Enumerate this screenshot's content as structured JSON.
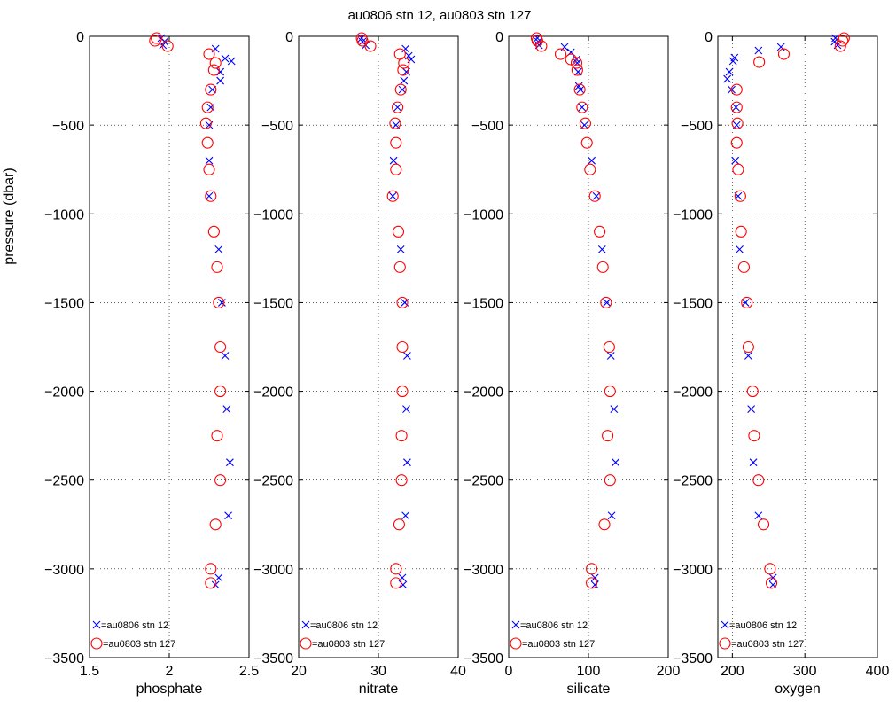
{
  "title": "au0806 stn 12, au0803 stn 127",
  "ylabel": "pressure (dbar)",
  "legend": {
    "series_a": "=au0806 stn 12",
    "series_b": "=au0803 stn 127"
  },
  "colors": {
    "au0806_stn_12": "#0000ff",
    "au0803_stn_127": "#ff0000"
  },
  "chart_data": [
    {
      "type": "scatter",
      "xlabel": "phosphate",
      "ylabel": "pressure (dbar)",
      "xlim": [
        1.5,
        2.5
      ],
      "ylim": [
        -3500,
        0
      ],
      "xticks": [
        1.5,
        2,
        2.5
      ],
      "yticks": [
        0,
        -500,
        -1000,
        -1500,
        -2000,
        -2500,
        -3000,
        -3500
      ],
      "grid": true,
      "legend_position": "bottom-left",
      "series": [
        {
          "name": "au0806 stn 12",
          "marker": "x",
          "color": "#0000ff",
          "points": [
            [
              1.95,
              -10
            ],
            [
              1.97,
              -30
            ],
            [
              1.96,
              -50
            ],
            [
              2.29,
              -70
            ],
            [
              2.35,
              -125
            ],
            [
              2.39,
              -140
            ],
            [
              2.32,
              -200
            ],
            [
              2.32,
              -250
            ],
            [
              2.27,
              -300
            ],
            [
              2.26,
              -400
            ],
            [
              2.25,
              -500
            ],
            [
              2.25,
              -700
            ],
            [
              2.25,
              -900
            ],
            [
              2.31,
              -1200
            ],
            [
              2.33,
              -1500
            ],
            [
              2.35,
              -1800
            ],
            [
              2.36,
              -2100
            ],
            [
              2.38,
              -2400
            ],
            [
              2.37,
              -2700
            ],
            [
              2.31,
              -3050
            ],
            [
              2.29,
              -3090
            ]
          ]
        },
        {
          "name": "au0803 stn 127",
          "marker": "o",
          "color": "#ff0000",
          "points": [
            [
              1.92,
              -10
            ],
            [
              1.91,
              -25
            ],
            [
              1.99,
              -55
            ],
            [
              2.25,
              -100
            ],
            [
              2.29,
              -150
            ],
            [
              2.28,
              -190
            ],
            [
              2.26,
              -300
            ],
            [
              2.24,
              -400
            ],
            [
              2.23,
              -490
            ],
            [
              2.24,
              -600
            ],
            [
              2.25,
              -750
            ],
            [
              2.26,
              -900
            ],
            [
              2.28,
              -1100
            ],
            [
              2.3,
              -1300
            ],
            [
              2.31,
              -1500
            ],
            [
              2.32,
              -1750
            ],
            [
              2.32,
              -2000
            ],
            [
              2.3,
              -2250
            ],
            [
              2.32,
              -2500
            ],
            [
              2.29,
              -2750
            ],
            [
              2.26,
              -3000
            ],
            [
              2.26,
              -3080
            ]
          ]
        }
      ]
    },
    {
      "type": "scatter",
      "xlabel": "nitrate",
      "xlim": [
        20,
        40
      ],
      "ylim": [
        -3500,
        0
      ],
      "xticks": [
        20,
        30,
        40
      ],
      "yticks": [
        0,
        -500,
        -1000,
        -1500,
        -2000,
        -2500,
        -3000,
        -3500
      ],
      "grid": true,
      "legend_position": "bottom-left",
      "series": [
        {
          "name": "au0806 stn 12",
          "marker": "x",
          "color": "#0000ff",
          "points": [
            [
              27.9,
              -10
            ],
            [
              28.0,
              -30
            ],
            [
              28.4,
              -50
            ],
            [
              33.4,
              -70
            ],
            [
              33.8,
              -110
            ],
            [
              34.1,
              -130
            ],
            [
              33.5,
              -200
            ],
            [
              33.2,
              -250
            ],
            [
              33.0,
              -300
            ],
            [
              32.4,
              -400
            ],
            [
              32.2,
              -500
            ],
            [
              31.9,
              -700
            ],
            [
              31.8,
              -900
            ],
            [
              32.8,
              -1200
            ],
            [
              33.3,
              -1500
            ],
            [
              33.6,
              -1800
            ],
            [
              33.5,
              -2100
            ],
            [
              33.6,
              -2400
            ],
            [
              33.4,
              -2700
            ],
            [
              33.0,
              -3050
            ],
            [
              33.1,
              -3090
            ]
          ]
        },
        {
          "name": "au0803 stn 127",
          "marker": "o",
          "color": "#ff0000",
          "points": [
            [
              27.9,
              -10
            ],
            [
              28.0,
              -25
            ],
            [
              29.0,
              -55
            ],
            [
              32.7,
              -100
            ],
            [
              33.2,
              -150
            ],
            [
              33.1,
              -190
            ],
            [
              32.8,
              -300
            ],
            [
              32.4,
              -400
            ],
            [
              32.1,
              -490
            ],
            [
              32.2,
              -600
            ],
            [
              32.2,
              -750
            ],
            [
              31.8,
              -900
            ],
            [
              32.5,
              -1100
            ],
            [
              32.7,
              -1300
            ],
            [
              33.0,
              -1500
            ],
            [
              33.0,
              -1750
            ],
            [
              33.0,
              -2000
            ],
            [
              32.9,
              -2250
            ],
            [
              32.9,
              -2500
            ],
            [
              32.6,
              -2750
            ],
            [
              32.2,
              -3000
            ],
            [
              32.2,
              -3080
            ]
          ]
        }
      ]
    },
    {
      "type": "scatter",
      "xlabel": "silicate",
      "xlim": [
        0,
        200
      ],
      "ylim": [
        -3500,
        0
      ],
      "xticks": [
        0,
        100,
        200
      ],
      "yticks": [
        0,
        -500,
        -1000,
        -1500,
        -2000,
        -2500,
        -3000,
        -3500
      ],
      "grid": true,
      "legend_position": "bottom-left",
      "series": [
        {
          "name": "au0806 stn 12",
          "marker": "x",
          "color": "#0000ff",
          "points": [
            [
              36,
              -10
            ],
            [
              37,
              -30
            ],
            [
              38,
              -50
            ],
            [
              70,
              -60
            ],
            [
              78,
              -90
            ],
            [
              85,
              -130
            ],
            [
              86,
              -150
            ],
            [
              87,
              -200
            ],
            [
              88,
              -280
            ],
            [
              90,
              -300
            ],
            [
              92,
              -400
            ],
            [
              95,
              -500
            ],
            [
              104,
              -700
            ],
            [
              110,
              -900
            ],
            [
              117,
              -1200
            ],
            [
              123,
              -1500
            ],
            [
              128,
              -1800
            ],
            [
              132,
              -2100
            ],
            [
              134,
              -2400
            ],
            [
              129,
              -2700
            ],
            [
              108,
              -3050
            ],
            [
              108,
              -3090
            ]
          ]
        },
        {
          "name": "au0803 stn 127",
          "marker": "o",
          "color": "#ff0000",
          "points": [
            [
              35,
              -10
            ],
            [
              36,
              -25
            ],
            [
              41,
              -55
            ],
            [
              65,
              -100
            ],
            [
              78,
              -130
            ],
            [
              85,
              -150
            ],
            [
              86,
              -190
            ],
            [
              89,
              -300
            ],
            [
              92,
              -400
            ],
            [
              96,
              -490
            ],
            [
              98,
              -600
            ],
            [
              102,
              -750
            ],
            [
              108,
              -900
            ],
            [
              114,
              -1100
            ],
            [
              118,
              -1300
            ],
            [
              122,
              -1500
            ],
            [
              126,
              -1750
            ],
            [
              127,
              -2000
            ],
            [
              124,
              -2250
            ],
            [
              127,
              -2500
            ],
            [
              120,
              -2750
            ],
            [
              104,
              -3000
            ],
            [
              104,
              -3080
            ]
          ]
        }
      ]
    },
    {
      "type": "scatter",
      "xlabel": "oxygen",
      "xlim": [
        180,
        400
      ],
      "ylim": [
        -3500,
        0
      ],
      "xticks": [
        200,
        300,
        400
      ],
      "yticks": [
        0,
        -500,
        -1000,
        -1500,
        -2000,
        -2500,
        -3000,
        -3500
      ],
      "grid": true,
      "legend_position": "bottom-left",
      "series": [
        {
          "name": "au0806 stn 12",
          "marker": "x",
          "color": "#0000ff",
          "points": [
            [
              342,
              -10
            ],
            [
              341,
              -30
            ],
            [
              345,
              -50
            ],
            [
              267,
              -60
            ],
            [
              236,
              -80
            ],
            [
              203,
              -120
            ],
            [
              201,
              -140
            ],
            [
              196,
              -200
            ],
            [
              193,
              -240
            ],
            [
              199,
              -300
            ],
            [
              205,
              -400
            ],
            [
              206,
              -500
            ],
            [
              204,
              -700
            ],
            [
              208,
              -900
            ],
            [
              210,
              -1200
            ],
            [
              218,
              -1500
            ],
            [
              222,
              -1800
            ],
            [
              226,
              -2100
            ],
            [
              229,
              -2400
            ],
            [
              236,
              -2700
            ],
            [
              256,
              -3050
            ],
            [
              256,
              -3090
            ]
          ]
        },
        {
          "name": "au0803 stn 127",
          "marker": "o",
          "color": "#ff0000",
          "points": [
            [
              354,
              -10
            ],
            [
              352,
              -25
            ],
            [
              349,
              -55
            ],
            [
              271,
              -100
            ],
            [
              237,
              -145
            ],
            [
              206,
              -300
            ],
            [
              206,
              -400
            ],
            [
              207,
              -490
            ],
            [
              206,
              -600
            ],
            [
              208,
              -750
            ],
            [
              211,
              -900
            ],
            [
              212,
              -1100
            ],
            [
              216,
              -1300
            ],
            [
              220,
              -1500
            ],
            [
              222,
              -1750
            ],
            [
              228,
              -2000
            ],
            [
              230,
              -2250
            ],
            [
              236,
              -2500
            ],
            [
              243,
              -2750
            ],
            [
              252,
              -3000
            ],
            [
              254,
              -3080
            ]
          ]
        }
      ]
    }
  ]
}
